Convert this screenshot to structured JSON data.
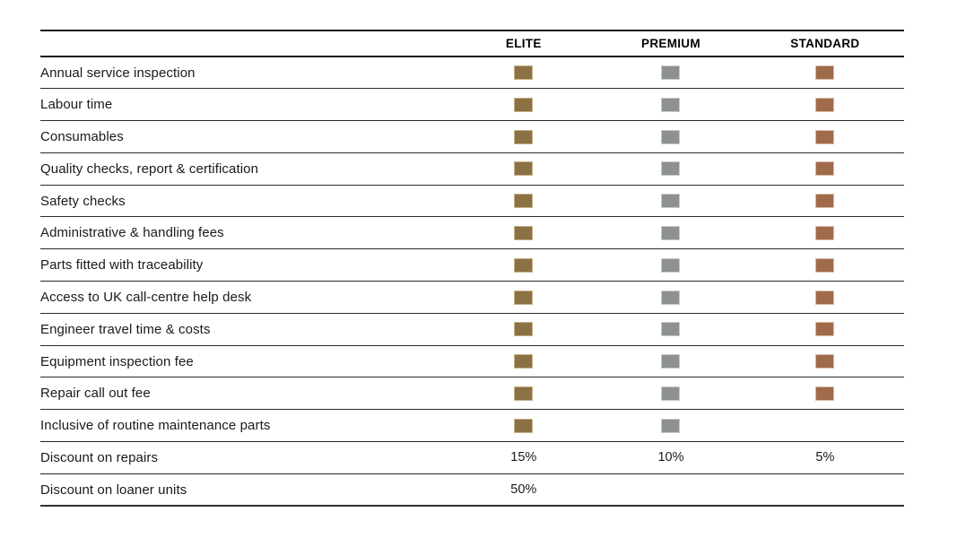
{
  "table": {
    "columns": [
      "",
      "ELITE",
      "PREMIUM",
      "STANDARD"
    ],
    "plan_keys": [
      "elite",
      "premium",
      "standard"
    ],
    "colors": {
      "elite_fill": "#8C7144",
      "elite_edge": "#C4B288",
      "premium_fill": "#8E9192",
      "premium_edge": "#C8CBCB",
      "standard_fill": "#9F6B4B",
      "standard_edge": "#DABCA6"
    },
    "rows": [
      {
        "feature": "Annual service inspection",
        "elite": true,
        "premium": true,
        "standard": true
      },
      {
        "feature": "Labour time",
        "elite": true,
        "premium": true,
        "standard": true
      },
      {
        "feature": "Consumables",
        "elite": true,
        "premium": true,
        "standard": true
      },
      {
        "feature": "Quality checks, report & certification",
        "elite": true,
        "premium": true,
        "standard": true
      },
      {
        "feature": "Safety checks",
        "elite": true,
        "premium": true,
        "standard": true
      },
      {
        "feature": "Administrative & handling fees",
        "elite": true,
        "premium": true,
        "standard": true
      },
      {
        "feature": "Parts fitted with traceability",
        "elite": true,
        "premium": true,
        "standard": true
      },
      {
        "feature": "Access to UK call-centre help desk",
        "elite": true,
        "premium": true,
        "standard": true
      },
      {
        "feature": "Engineer travel time & costs",
        "elite": true,
        "premium": true,
        "standard": true
      },
      {
        "feature": "Equipment inspection fee",
        "elite": true,
        "premium": true,
        "standard": true
      },
      {
        "feature": "Repair call out fee",
        "elite": true,
        "premium": true,
        "standard": true
      },
      {
        "feature": "Inclusive of routine maintenance parts",
        "elite": true,
        "premium": true,
        "standard": false
      },
      {
        "feature": "Discount on repairs",
        "elite": "15%",
        "premium": "10%",
        "standard": "5%"
      },
      {
        "feature": "Discount on loaner units",
        "elite": "50%",
        "premium": "",
        "standard": ""
      }
    ]
  }
}
